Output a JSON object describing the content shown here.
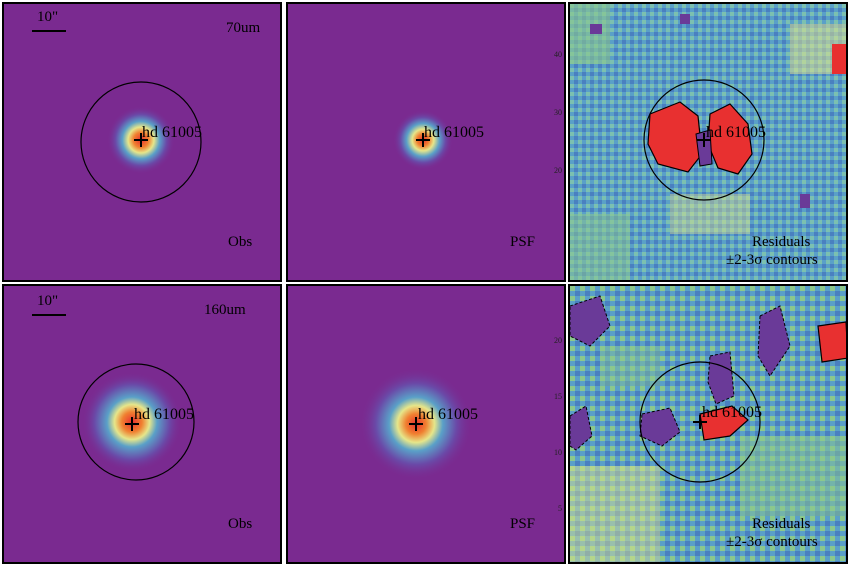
{
  "source_name": "hd 61005",
  "scale_label": "10\"",
  "rows": [
    {
      "band": "70um",
      "panels": [
        {
          "kind": "obs",
          "label": "Obs"
        },
        {
          "kind": "psf",
          "label": "PSF"
        },
        {
          "kind": "res",
          "label1": "Residuals",
          "label2": "±2-3σ contours"
        }
      ]
    },
    {
      "band": "160um",
      "panels": [
        {
          "kind": "obs",
          "label": "Obs"
        },
        {
          "kind": "psf",
          "label": "PSF"
        },
        {
          "kind": "res",
          "label1": "Residuals",
          "label2": "±2-3σ contours"
        }
      ]
    }
  ],
  "axis_ticks": {
    "row1": [
      "40",
      "30",
      "20"
    ],
    "row2": [
      "20",
      "15",
      "10",
      "5"
    ]
  },
  "colors": {
    "background_purple": "#7a2a90",
    "residual_blue": "#5aa0c8",
    "residual_green": "#8cc88c",
    "residual_yellow": "#e6e68a",
    "peak_red": "#e83030",
    "peak_orange": "#f08030"
  }
}
